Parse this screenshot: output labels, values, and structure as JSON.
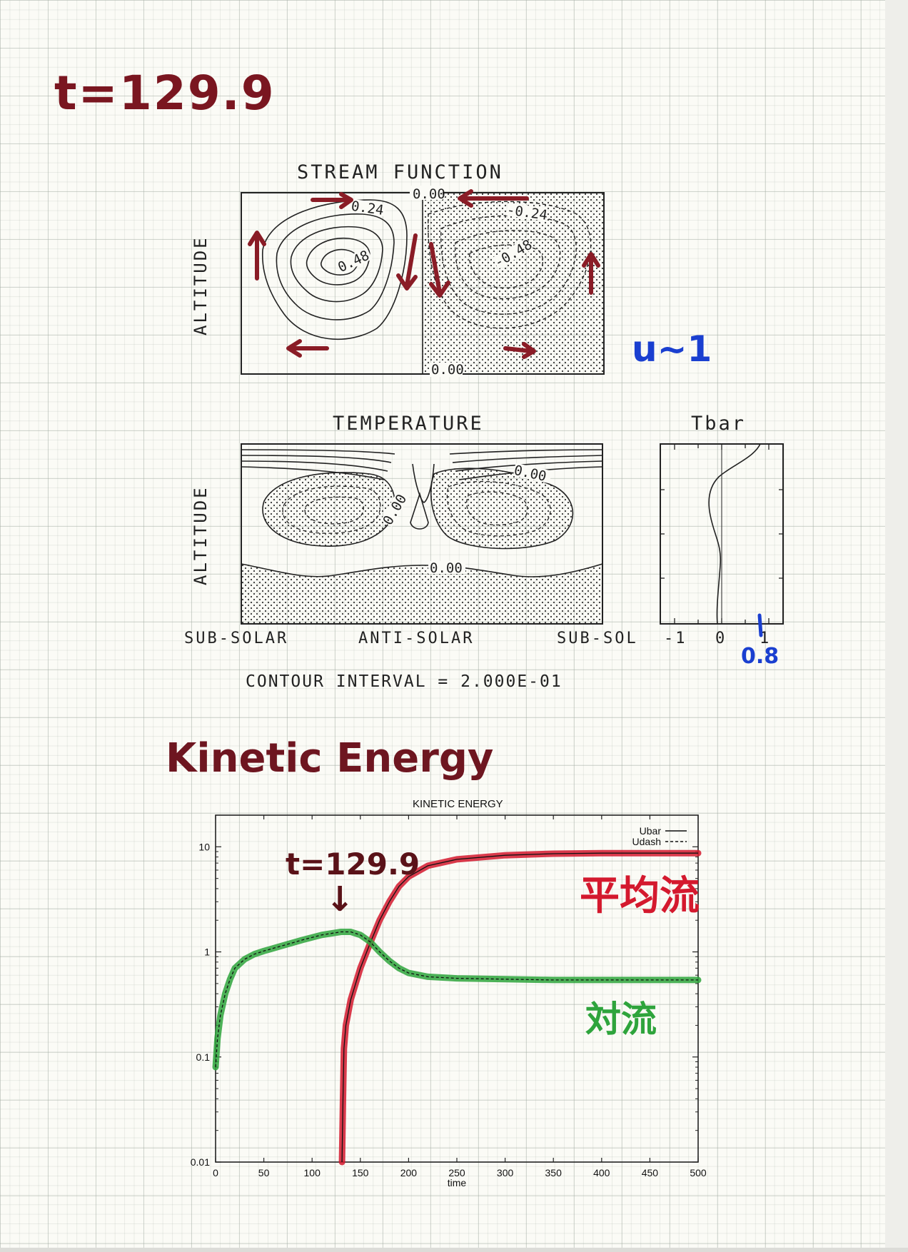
{
  "handwritten": {
    "time_label": "t=129.9",
    "velocity_note": "u~1",
    "tbar_note": "0.8",
    "section_title": "Kinetic Energy",
    "plot_time_label": "t=129.9",
    "arrow_glyph": "↓",
    "mean_flow_label": "平均流",
    "convection_label": "対流"
  },
  "stream_function": {
    "title": "STREAM FUNCTION",
    "ylabel": "ALTITUDE",
    "contour_labels": [
      "0.00",
      "0.24",
      "0.48",
      "-0.24",
      "-0.48",
      "0.00"
    ]
  },
  "temperature": {
    "title": "TEMPERATURE",
    "ylabel": "ALTITUDE",
    "contour_labels": [
      "0.00",
      "0.00",
      "0.00"
    ],
    "xlabels": [
      "SUB-SOLAR",
      "ANTI-SOLAR",
      "SUB-SOL"
    ]
  },
  "tbar": {
    "title": "Tbar",
    "xticks": [
      "-1",
      "0",
      "1"
    ]
  },
  "contour_interval": "CONTOUR INTERVAL = 2.000E-01",
  "colors": {
    "paper": "#fbfbf6",
    "marker_dark_red": "#7a1620",
    "marker_red": "#d4192e",
    "marker_green": "#2ea43c",
    "marker_blue": "#1a3fd0",
    "ink": "#222222"
  },
  "chart_data": {
    "type": "line",
    "title": "KINETIC ENERGY",
    "xlabel": "time",
    "ylabel": "",
    "xlim": [
      0,
      500
    ],
    "ylim": [
      0.01,
      20
    ],
    "yscale": "log",
    "xticks": [
      "0",
      "50",
      "100",
      "150",
      "200",
      "250",
      "300",
      "350",
      "400",
      "450",
      "500"
    ],
    "yticks": [
      "0.01",
      "0.1",
      "1",
      "10"
    ],
    "legend": {
      "position": "top-right",
      "entries": [
        "Ubar",
        "Udash"
      ]
    },
    "series": [
      {
        "name": "Ubar",
        "x": [
          131,
          132,
          133,
          135,
          140,
          150,
          160,
          170,
          180,
          190,
          200,
          220,
          250,
          300,
          350,
          400,
          450,
          500
        ],
        "y": [
          0.01,
          0.04,
          0.12,
          0.2,
          0.35,
          0.7,
          1.2,
          2.0,
          3.0,
          4.2,
          5.2,
          6.6,
          7.6,
          8.3,
          8.6,
          8.7,
          8.7,
          8.7
        ]
      },
      {
        "name": "Udash",
        "x": [
          0,
          2,
          5,
          10,
          15,
          20,
          30,
          40,
          50,
          70,
          90,
          110,
          130,
          140,
          150,
          160,
          170,
          180,
          190,
          200,
          220,
          250,
          300,
          350,
          400,
          450,
          500
        ],
        "y": [
          0.08,
          0.15,
          0.25,
          0.4,
          0.55,
          0.7,
          0.85,
          0.95,
          1.02,
          1.15,
          1.3,
          1.45,
          1.55,
          1.55,
          1.45,
          1.25,
          1.0,
          0.82,
          0.7,
          0.63,
          0.58,
          0.56,
          0.55,
          0.54,
          0.54,
          0.54,
          0.54
        ]
      }
    ]
  }
}
